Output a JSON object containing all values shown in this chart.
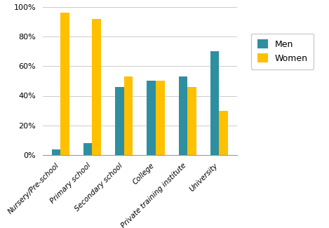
{
  "categories": [
    "Nursery/Pre-school",
    "Primary school",
    "Secondary school",
    "College",
    "Private training institute",
    "University"
  ],
  "men": [
    4,
    8,
    46,
    50,
    53,
    70
  ],
  "women": [
    96,
    92,
    53,
    50,
    46,
    30
  ],
  "men_color": "#2E8FA0",
  "women_color": "#FFC000",
  "legend_labels": [
    "Men",
    "Women"
  ],
  "ylim": [
    0,
    100
  ],
  "yticks": [
    0,
    20,
    40,
    60,
    80,
    100
  ],
  "yticklabels": [
    "0%",
    "20%",
    "40%",
    "60%",
    "80%",
    "100%"
  ],
  "bar_width": 0.28,
  "figsize": [
    4.69,
    3.25
  ],
  "dpi": 100
}
